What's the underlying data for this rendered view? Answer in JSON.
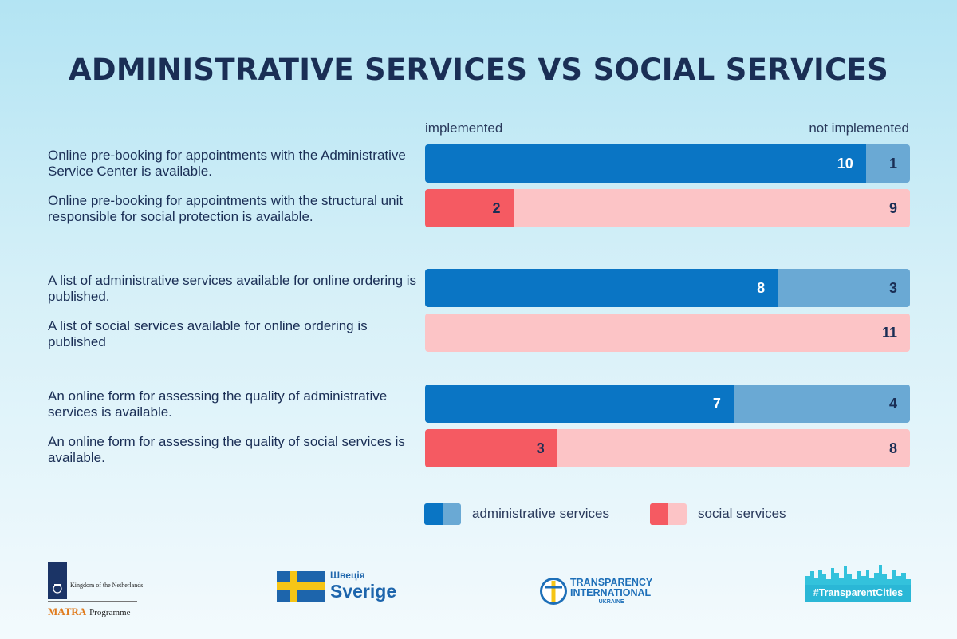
{
  "title": "ADMINISTRATIVE SERVICES VS SOCIAL SERVICES",
  "chart_data": {
    "type": "bar",
    "orientation": "horizontal-stacked",
    "title": "ADMINISTRATIVE SERVICES VS SOCIAL SERVICES",
    "axis_labels": {
      "left": "implemented",
      "right": "not implemented"
    },
    "total": 11,
    "rows": [
      {
        "label": "Online pre-booking for appointments with the Administrative Service Center is available.",
        "group": "admin",
        "implemented": 10,
        "not_implemented": 1
      },
      {
        "label": "Online pre-booking for appointments with the structural unit responsible for social protection is available.",
        "group": "social",
        "implemented": 2,
        "not_implemented": 9
      },
      {
        "label": "A list of administrative services available for online ordering is published.",
        "group": "admin",
        "implemented": 8,
        "not_implemented": 3
      },
      {
        "label": "A list of social services available for online ordering is published",
        "group": "social",
        "implemented": 0,
        "not_implemented": 11
      },
      {
        "label": "An online form for assessing the quality of administrative services is available.",
        "group": "admin",
        "implemented": 7,
        "not_implemented": 4
      },
      {
        "label": "An online form for assessing the quality of social services is available.",
        "group": "social",
        "implemented": 3,
        "not_implemented": 8
      }
    ],
    "legend": [
      {
        "name": "administrative services",
        "colors": [
          "#0a75c4",
          "#6aa9d4"
        ]
      },
      {
        "name": "social services",
        "colors": [
          "#f55a62",
          "#fcc4c6"
        ]
      }
    ],
    "colors": {
      "admin_implemented": "#0a75c4",
      "admin_not_implemented": "#6aa9d4",
      "social_implemented": "#f55a62",
      "social_not_implemented": "#fcc4c6"
    }
  },
  "footer": {
    "netherlands": {
      "kingdom_text": "Kingdom of the Netherlands",
      "matra": "MATRA",
      "programme": "Programme"
    },
    "sweden": {
      "small": "Швеція",
      "big": "Sverige"
    },
    "ti": {
      "line1": "TRANSPARENCY",
      "line2": "INTERNATIONAL",
      "line3": "UKRAINE"
    },
    "tc": {
      "tag": "#TransparentCities"
    }
  }
}
